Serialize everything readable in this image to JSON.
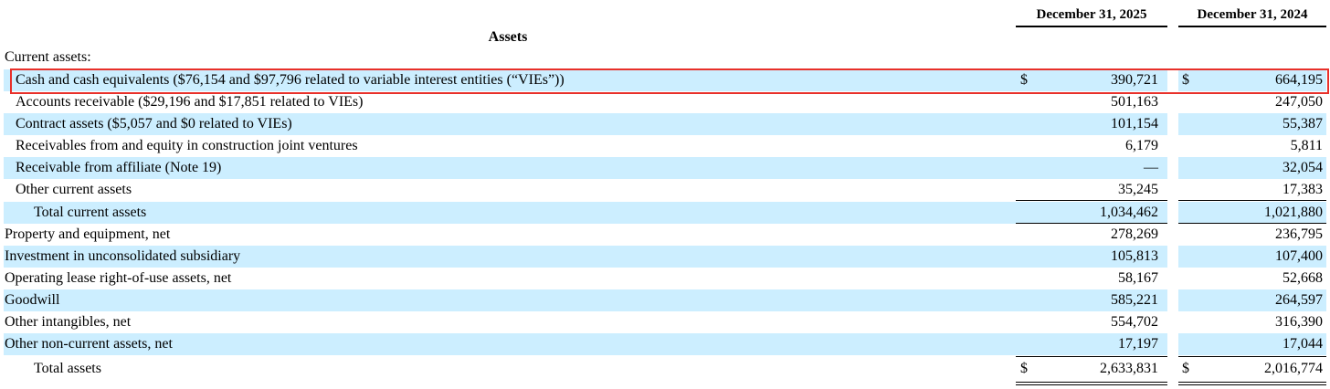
{
  "header": {
    "col1": "December 31, 2025",
    "col2": "December 31, 2024",
    "section": "Assets"
  },
  "current_assets_label": "Current assets:",
  "rows": [
    {
      "label": "Cash and cash equivalents ($76,154 and $97,796 related to variable interest entities (“VIEs”))",
      "c1": "390,721",
      "c2": "664,195",
      "cur": "$",
      "indent": 1,
      "shade": true,
      "highlight": true
    },
    {
      "label": "Accounts receivable ($29,196 and $17,851 related to VIEs)",
      "c1": "501,163",
      "c2": "247,050",
      "indent": 1,
      "shade": false
    },
    {
      "label": "Contract assets ($5,057 and $0 related to VIEs)",
      "c1": "101,154",
      "c2": "55,387",
      "indent": 1,
      "shade": true
    },
    {
      "label": "Receivables from and equity in construction joint ventures",
      "c1": "6,179",
      "c2": "5,811",
      "indent": 1,
      "shade": false
    },
    {
      "label": "Receivable from affiliate (Note 19)",
      "c1": "—",
      "c2": "32,054",
      "indent": 1,
      "shade": true
    },
    {
      "label": "Other current assets",
      "c1": "35,245",
      "c2": "17,383",
      "indent": 1,
      "shade": false
    },
    {
      "label": "Total current assets",
      "c1": "1,034,462",
      "c2": "1,021,880",
      "indent": 2,
      "shade": true
    },
    {
      "label": "Property and equipment, net",
      "c1": "278,269",
      "c2": "236,795",
      "indent": 0,
      "shade": false
    },
    {
      "label": "Investment in unconsolidated subsidiary",
      "c1": "105,813",
      "c2": "107,400",
      "indent": 0,
      "shade": true
    },
    {
      "label": "Operating lease right-of-use assets, net",
      "c1": "58,167",
      "c2": "52,668",
      "indent": 0,
      "shade": false
    },
    {
      "label": "Goodwill",
      "c1": "585,221",
      "c2": "264,597",
      "indent": 0,
      "shade": true
    },
    {
      "label": "Other intangibles, net",
      "c1": "554,702",
      "c2": "316,390",
      "indent": 0,
      "shade": false
    },
    {
      "label": "Other non-current assets, net",
      "c1": "17,197",
      "c2": "17,044",
      "indent": 0,
      "shade": true
    },
    {
      "label": "Total assets",
      "c1": "2,633,831",
      "c2": "2,016,774",
      "cur": "$",
      "indent": 2,
      "shade": false
    }
  ],
  "colors": {
    "row_shade": "#cceeff",
    "highlight_border": "#e8302a"
  }
}
